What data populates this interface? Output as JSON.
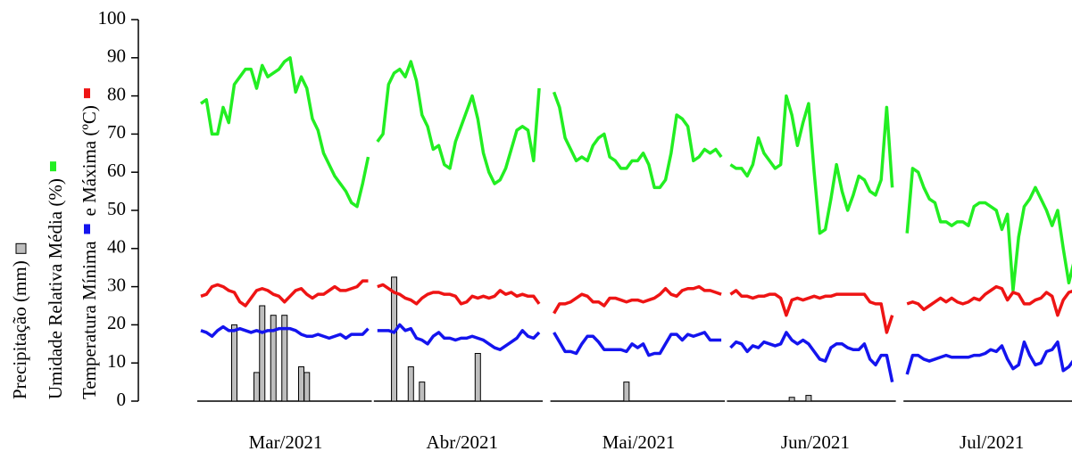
{
  "chart_data": {
    "type": "combo",
    "ylim": [
      0,
      100
    ],
    "yticks": [
      0,
      10,
      20,
      30,
      40,
      50,
      60,
      70,
      80,
      90,
      100
    ],
    "series": [
      {
        "name": "Precipitação (mm)",
        "color": "#bebebe",
        "key": "precip"
      },
      {
        "name": "Umidade Relativa Média (%)",
        "color": "#22ee22",
        "key": "humidity"
      },
      {
        "name": "Temperatura Mínima",
        "color": "#1414ee",
        "key": "tmin"
      },
      {
        "name": "e Máxima (ºC)",
        "color": "#ee1414",
        "key": "tmax"
      }
    ],
    "panels": [
      {
        "name": "Mar/2021",
        "precip": [
          0,
          0,
          0,
          0,
          0,
          0,
          20,
          0,
          0,
          0,
          7.5,
          25,
          0,
          22.5,
          0,
          22.5,
          0,
          0,
          9,
          7.5,
          0,
          0,
          0,
          0,
          0,
          0,
          0,
          0,
          0,
          0,
          0
        ],
        "humidity": [
          78,
          79,
          70,
          70,
          77,
          73,
          83,
          85,
          87,
          87,
          82,
          88,
          85,
          86,
          87,
          89,
          90,
          81,
          85,
          82,
          74,
          71,
          65,
          62,
          59,
          57,
          55,
          52,
          51,
          57,
          64
        ],
        "tmin": [
          18.5,
          18,
          17,
          18.5,
          19.5,
          18.5,
          18.5,
          19,
          18.5,
          18,
          18.5,
          18,
          18.5,
          18.5,
          19,
          19,
          19,
          18.5,
          17.5,
          17,
          17,
          17.5,
          17,
          16.5,
          17,
          17.5,
          16.5,
          17.5,
          17.5,
          17.5,
          19
        ],
        "tmax": [
          27.5,
          28,
          30,
          30.5,
          30,
          29,
          28.5,
          26,
          25,
          27,
          29,
          29.5,
          29,
          28,
          27.5,
          26,
          27.5,
          29,
          29.5,
          28,
          27,
          28,
          28,
          29,
          30,
          29,
          29,
          29.5,
          30,
          31.5,
          31.5
        ]
      },
      {
        "name": "Abr/2021",
        "precip": [
          0,
          0,
          0,
          32.5,
          0,
          0,
          9,
          0,
          5,
          0,
          0,
          0,
          0,
          0,
          0,
          0,
          0,
          0,
          12.5,
          0,
          0,
          0,
          0,
          0,
          0,
          0,
          0,
          0,
          0,
          0
        ],
        "humidity": [
          68,
          70,
          83,
          86,
          87,
          85,
          89,
          84,
          75,
          72,
          66,
          67,
          62,
          61,
          68,
          72,
          76,
          80,
          74,
          65,
          60,
          57,
          58,
          61,
          66,
          71,
          72,
          71,
          63,
          82
        ],
        "tmin": [
          18.5,
          18.5,
          18.5,
          18,
          20,
          18.5,
          19,
          16.5,
          16,
          15,
          17,
          18,
          16.5,
          16.5,
          16,
          16.5,
          16.5,
          17,
          16.5,
          16,
          15,
          14,
          13.5,
          14.5,
          15.5,
          16.5,
          18.5,
          17,
          16.5,
          18
        ],
        "tmax": [
          30,
          30.5,
          29.5,
          28.5,
          28,
          27,
          26.5,
          25.5,
          27,
          28,
          28.5,
          28.5,
          28,
          28,
          27.5,
          25.5,
          26,
          27.5,
          27,
          27.5,
          27,
          27.5,
          29,
          28,
          28.5,
          27.5,
          28,
          27.5,
          27.5,
          25.5
        ]
      },
      {
        "name": "Mai/2021",
        "precip": [
          0,
          0,
          0,
          0,
          0,
          0,
          0,
          0,
          0,
          0,
          0,
          0,
          0,
          5,
          0,
          0,
          0,
          0,
          0,
          0,
          0,
          0,
          0,
          0,
          0,
          0,
          0,
          0,
          0,
          0,
          0
        ],
        "humidity": [
          81,
          77,
          69,
          66,
          63,
          64,
          63,
          67,
          69,
          70,
          64,
          63,
          61,
          61,
          63,
          63,
          65,
          62,
          56,
          56,
          58,
          65,
          75,
          74,
          72,
          63,
          64,
          66,
          65,
          66,
          64
        ],
        "tmin": [
          18,
          15.5,
          13,
          13,
          12.5,
          15,
          17,
          17,
          15.5,
          13.5,
          13.5,
          13.5,
          13.5,
          13,
          15,
          14,
          15,
          12,
          12.5,
          12.5,
          15,
          17.5,
          17.5,
          16,
          17.5,
          17,
          17.5,
          18,
          16,
          16,
          16
        ],
        "tmax": [
          23,
          25.5,
          25.5,
          26,
          27,
          28,
          27.5,
          26,
          26,
          25,
          27,
          27,
          26.5,
          26,
          26.5,
          26.5,
          26,
          26.5,
          27,
          28,
          29.5,
          28,
          27.5,
          29,
          29.5,
          29.5,
          30,
          29,
          29,
          28.5,
          28
        ]
      },
      {
        "name": "Jun/2021",
        "precip": [
          0,
          0,
          0,
          0,
          0,
          0,
          0,
          0,
          0,
          0,
          0,
          1,
          0,
          0,
          1.5,
          0,
          0,
          0,
          0,
          0,
          0,
          0,
          0,
          0,
          0,
          0,
          0,
          0,
          0,
          0
        ],
        "humidity": [
          62,
          61,
          61,
          59,
          62,
          69,
          65,
          63,
          61,
          62,
          80,
          75,
          67,
          73,
          78,
          60,
          44,
          45,
          53,
          62,
          55,
          50,
          54,
          59,
          58,
          55,
          54,
          58,
          77,
          56
        ],
        "tmin": [
          14,
          15.5,
          15,
          13,
          14.5,
          14,
          15.5,
          15,
          14.5,
          15,
          18,
          16,
          15,
          16,
          15,
          13,
          11,
          10.5,
          14,
          15,
          15,
          14,
          13.5,
          13.5,
          15,
          11,
          9.5,
          12,
          12,
          5
        ],
        "tmax": [
          28,
          29,
          27.5,
          27.5,
          27,
          27.5,
          27.5,
          28,
          28,
          27,
          22.5,
          26.5,
          27,
          26.5,
          27,
          27.5,
          27,
          27.5,
          27.5,
          28,
          28,
          28,
          28,
          28,
          28,
          26,
          25.5,
          25.5,
          18,
          22.5
        ]
      },
      {
        "name": "Jul/2021",
        "precip": [
          0,
          0,
          0,
          0,
          0,
          0,
          0,
          0,
          0,
          0,
          0,
          0,
          0,
          0,
          0,
          0,
          0,
          0,
          0,
          0,
          0,
          0,
          0,
          0,
          0,
          0,
          0,
          0,
          0,
          0,
          0
        ],
        "humidity": [
          44,
          61,
          60,
          56,
          53,
          52,
          47,
          47,
          46,
          47,
          47,
          46,
          51,
          52,
          52,
          51,
          50,
          45,
          49,
          29,
          43,
          51,
          53,
          56,
          53,
          50,
          46,
          50,
          40,
          31,
          37
        ],
        "tmin": [
          7,
          12,
          12,
          11,
          10.5,
          11,
          11.5,
          12,
          11.5,
          11.5,
          11.5,
          11.5,
          12,
          12,
          12.5,
          13.5,
          13,
          14.5,
          11,
          8.5,
          9.5,
          15.5,
          12,
          9.5,
          10,
          13,
          13.5,
          15.5,
          8,
          9,
          11
        ],
        "tmax": [
          25.5,
          26,
          25.5,
          24,
          25,
          26,
          27,
          26,
          27,
          26,
          25.5,
          26,
          27,
          26.5,
          28,
          29,
          30,
          29.5,
          26.5,
          28.5,
          28,
          25.5,
          25.5,
          26.5,
          27,
          28.5,
          27.5,
          22.5,
          26.5,
          28.5,
          29
        ]
      }
    ]
  }
}
